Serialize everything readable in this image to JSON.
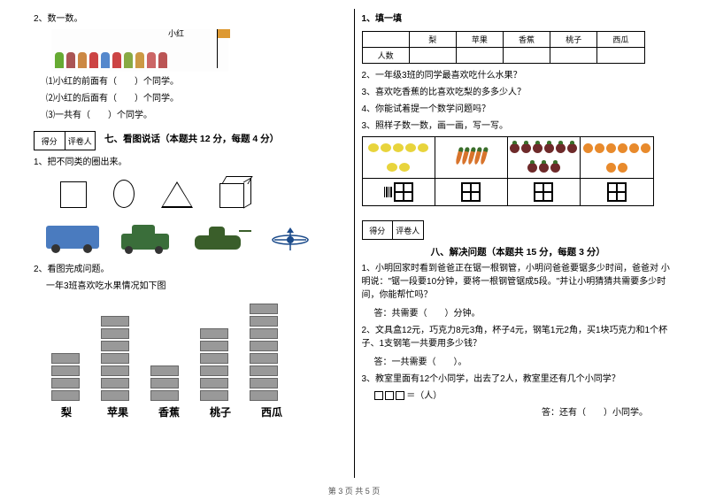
{
  "left": {
    "q2_title": "2、数一数。",
    "xh_label": "小红",
    "kids_colors": [
      "#6a3",
      "#a55",
      "#c84",
      "#c44",
      "#58c",
      "#c44",
      "#8a4",
      "#c94",
      "#c66",
      "#b55"
    ],
    "q2_sub1": "⑴小红的前面有（　　）个同学。",
    "q2_sub2": "⑵小红的后面有（　　）个同学。",
    "q2_sub3": "⑶一共有（　　）个同学。",
    "score_l": "得分",
    "score_r": "评卷人",
    "section7": "七、看图说话（本题共 12 分，每题 4 分）",
    "q7_1": "1、把不同类的圈出来。",
    "q7_2": "2、看图完成问题。",
    "q7_2_sub": "一年3班喜欢吃水果情况如下图",
    "fruits": [
      "梨",
      "苹果",
      "香蕉",
      "桃子",
      "西瓜"
    ],
    "bar_counts": [
      4,
      7,
      3,
      6,
      8
    ],
    "bar_fill": "#999999"
  },
  "right": {
    "r1_title": "1、填一填",
    "table_h0": "",
    "table_h": [
      "梨",
      "苹果",
      "香蕉",
      "桃子",
      "西瓜"
    ],
    "table_r": "人数",
    "r2": "2、一年级3班的同学最喜欢吃什么水果？",
    "r3": "3、喜欢吃香蕉的比喜欢吃梨的多多少人？",
    "r4": "4、你能试着提一个数学问题吗？",
    "r5": "3、照样子数一数，画一画，写一写。",
    "count_items": {
      "lemon_n": 7,
      "carrot_n": 5,
      "radish_n": 9,
      "orange_n": 8
    },
    "section8": "八、解决问题（本题共 15 分，每题 3 分）",
    "q8_1": "1、小明回家时看到爸爸正在锯一根钢管，小明问爸爸要锯多少时间，爸爸对 小明说：\"锯一段要10分钟，要将一根钢管锯成5段。\"并让小明猜猜共需要多少时间，你能帮忙吗？",
    "ans1": "答：共需要（　　）分钟。",
    "q8_2": "2、文具盒12元，巧克力8元3角，杯子4元，钢笔1元2角，买1块巧克力和1个杯子、1支钢笔一共要用多少钱？",
    "ans2": "答：一共需要（　　）。",
    "q8_3": "3、教室里面有12个小同学，出去了2人，教室里还有几个小同学？",
    "eq3": "＝（人）",
    "ans3": "答：还有（　　）小同学。"
  },
  "footer": "第 3 页 共 5 页"
}
